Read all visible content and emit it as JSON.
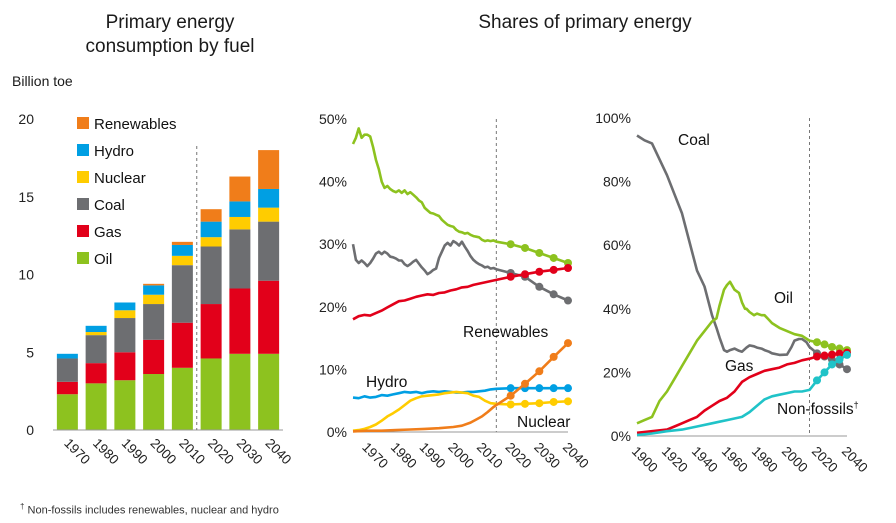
{
  "panels": {
    "left": {
      "title_line1": "Primary energy",
      "title_line2": "consumption by fuel",
      "unit": "Billion toe"
    },
    "middle": {
      "title": "Shares of primary energy"
    }
  },
  "footnote": {
    "mark": "†",
    "text": "Non-fossils includes renewables, nuclear and hydro"
  },
  "colors": {
    "oil": "#8dc21f",
    "gas": "#e2001a",
    "coal": "#6d6e71",
    "nuclear": "#ffcc00",
    "hydro": "#009fe3",
    "renewables": "#f07d1a",
    "nonfossil": "#20c3c8"
  },
  "chart_data": [
    {
      "type": "bar",
      "stacked": true,
      "categories": [
        "1970",
        "1980",
        "1990",
        "2000",
        "2010",
        "2020",
        "2030",
        "2040"
      ],
      "ylim": [
        0,
        20
      ],
      "yticks": [
        "0",
        "5",
        "10",
        "15",
        "20"
      ],
      "ylabel": "Billion toe",
      "projection_from": "2020",
      "legend_position": "top-left",
      "series": [
        {
          "name": "Oil",
          "key": "oil",
          "values": [
            2.3,
            3.0,
            3.2,
            3.6,
            4.0,
            4.6,
            4.9,
            4.9
          ]
        },
        {
          "name": "Gas",
          "key": "gas",
          "values": [
            0.8,
            1.3,
            1.8,
            2.2,
            2.9,
            3.5,
            4.2,
            4.7
          ]
        },
        {
          "name": "Coal",
          "key": "coal",
          "values": [
            1.5,
            1.8,
            2.2,
            2.3,
            3.7,
            3.7,
            3.8,
            3.8
          ]
        },
        {
          "name": "Nuclear",
          "key": "nuclear",
          "values": [
            0.0,
            0.2,
            0.5,
            0.6,
            0.6,
            0.6,
            0.8,
            0.9
          ]
        },
        {
          "name": "Hydro",
          "key": "hydro",
          "values": [
            0.3,
            0.4,
            0.5,
            0.6,
            0.7,
            1.0,
            1.0,
            1.2
          ]
        },
        {
          "name": "Renewables",
          "key": "renewables",
          "values": [
            0.0,
            0.0,
            0.0,
            0.1,
            0.2,
            0.8,
            1.6,
            2.5
          ]
        }
      ]
    },
    {
      "type": "line",
      "xlim": [
        1965,
        2040
      ],
      "xticks": [
        "1970",
        "1980",
        "1990",
        "2000",
        "2010",
        "2020",
        "2030",
        "2040"
      ],
      "ylim": [
        0,
        50
      ],
      "yticks": [
        "0%",
        "10%",
        "20%",
        "30%",
        "40%",
        "50%"
      ],
      "projection_from": 2015,
      "series": [
        {
          "name": "Oil",
          "key": "oil",
          "labeled": false,
          "x": [
            1965,
            1966,
            1967,
            1968,
            1969,
            1970,
            1971,
            1972,
            1973,
            1974,
            1975,
            1976,
            1977,
            1978,
            1979,
            1980,
            1981,
            1982,
            1983,
            1984,
            1985,
            1986,
            1987,
            1988,
            1989,
            1990,
            1991,
            1992,
            1993,
            1994,
            1995,
            1996,
            1997,
            1998,
            1999,
            2000,
            2001,
            2002,
            2003,
            2004,
            2005,
            2006,
            2007,
            2008,
            2009,
            2010,
            2011,
            2012,
            2013,
            2014,
            2015,
            2020,
            2025,
            2030,
            2035,
            2040
          ],
          "y": [
            46,
            47,
            48.5,
            47,
            47.5,
            47.5,
            47.2,
            45.5,
            43.5,
            42,
            40,
            39,
            39.3,
            38.8,
            38.5,
            38.3,
            38.6,
            38.2,
            38.6,
            38,
            38.3,
            37.9,
            37.5,
            37,
            36.7,
            35.8,
            35.4,
            35,
            34.9,
            34.7,
            34.5,
            33.9,
            33.5,
            33.1,
            32.9,
            32.8,
            32.3,
            32,
            31.9,
            31.7,
            31.8,
            31.5,
            31.3,
            31.2,
            31.1,
            30.7,
            30.5,
            30.6,
            30.5,
            30.6,
            30.4,
            30,
            29.4,
            28.6,
            27.8,
            27
          ]
        },
        {
          "name": "Coal",
          "key": "coal",
          "labeled": false,
          "x": [
            1965,
            1966,
            1967,
            1968,
            1969,
            1970,
            1971,
            1972,
            1973,
            1974,
            1975,
            1976,
            1977,
            1978,
            1979,
            1980,
            1981,
            1982,
            1983,
            1984,
            1985,
            1986,
            1987,
            1988,
            1989,
            1990,
            1991,
            1992,
            1993,
            1994,
            1995,
            1996,
            1997,
            1998,
            1999,
            2000,
            2001,
            2002,
            2003,
            2004,
            2005,
            2006,
            2007,
            2008,
            2009,
            2010,
            2011,
            2012,
            2013,
            2014,
            2015,
            2020,
            2025,
            2030,
            2035,
            2040
          ],
          "y": [
            30,
            27.5,
            27,
            27.4,
            27,
            26.5,
            27,
            27.7,
            28.5,
            28.8,
            28.4,
            28.8,
            28.5,
            28,
            27.9,
            27.7,
            27.4,
            27.4,
            26.8,
            26.5,
            26.8,
            27.2,
            27.5,
            26.9,
            26.3,
            25.8,
            25.2,
            25.5,
            25.9,
            26.1,
            27.8,
            28.8,
            29.8,
            30.2,
            29.8,
            30.5,
            30.2,
            29.8,
            30.4,
            29.6,
            28.9,
            28.1,
            27.5,
            27.1,
            26.8,
            26.6,
            26.3,
            26.4,
            26.1,
            26.2,
            26,
            25.4,
            24.8,
            23.2,
            22,
            21
          ]
        },
        {
          "name": "Gas",
          "key": "gas",
          "labeled": false,
          "x": [
            1965,
            1967,
            1969,
            1971,
            1973,
            1975,
            1977,
            1979,
            1981,
            1983,
            1985,
            1987,
            1989,
            1991,
            1993,
            1995,
            1997,
            1999,
            2001,
            2003,
            2005,
            2007,
            2009,
            2011,
            2013,
            2015,
            2020,
            2025,
            2030,
            2035,
            2040
          ],
          "y": [
            18,
            18.5,
            18.7,
            18.6,
            19,
            19.4,
            19.9,
            20.4,
            20.9,
            21,
            21.3,
            21.6,
            21.8,
            22,
            21.9,
            22.2,
            22.3,
            22.6,
            22.8,
            23.1,
            23.2,
            23.5,
            23.7,
            23.9,
            24.1,
            24.3,
            24.8,
            25.2,
            25.6,
            25.9,
            26.2
          ]
        },
        {
          "name": "Hydro",
          "key": "hydro",
          "labeled": true,
          "label": "Hydro",
          "x": [
            1965,
            1967,
            1969,
            1971,
            1973,
            1975,
            1977,
            1979,
            1981,
            1983,
            1985,
            1987,
            1989,
            1991,
            1993,
            1995,
            1997,
            1999,
            2001,
            2003,
            2005,
            2007,
            2009,
            2011,
            2013,
            2015,
            2020,
            2025,
            2030,
            2035,
            2040
          ],
          "y": [
            5.5,
            5.4,
            5.7,
            5.5,
            5.6,
            5.9,
            5.8,
            6,
            6.2,
            6.4,
            6.3,
            6.4,
            6.2,
            6.4,
            6.5,
            6.4,
            6.5,
            6.4,
            6.3,
            6.3,
            6.4,
            6.4,
            6.5,
            6.6,
            6.8,
            6.9,
            7,
            7,
            7,
            7,
            7
          ]
        },
        {
          "name": "Nuclear",
          "key": "nuclear",
          "labeled": true,
          "label": "Nuclear",
          "x": [
            1965,
            1967,
            1969,
            1971,
            1973,
            1975,
            1977,
            1979,
            1981,
            1983,
            1985,
            1987,
            1989,
            1991,
            1993,
            1995,
            1997,
            1999,
            2001,
            2003,
            2005,
            2007,
            2009,
            2011,
            2013,
            2015,
            2020,
            2025,
            2030,
            2035,
            2040
          ],
          "y": [
            0.2,
            0.3,
            0.5,
            0.8,
            1.2,
            1.8,
            2.5,
            3,
            3.6,
            4.3,
            5,
            5.4,
            5.7,
            5.8,
            5.9,
            6,
            6.2,
            6.3,
            6.4,
            6.3,
            6.2,
            5.8,
            5.6,
            5,
            4.6,
            4.5,
            4.4,
            4.5,
            4.6,
            4.8,
            4.9
          ]
        },
        {
          "name": "Renewables",
          "key": "renewables",
          "labeled": true,
          "label": "Renewables",
          "x": [
            1965,
            1970,
            1975,
            1980,
            1985,
            1990,
            1995,
            2000,
            2003,
            2006,
            2008,
            2010,
            2012,
            2014,
            2015,
            2020,
            2025,
            2030,
            2035,
            2040
          ],
          "y": [
            0.1,
            0.2,
            0.2,
            0.3,
            0.4,
            0.5,
            0.6,
            0.8,
            1,
            1.5,
            2,
            2.5,
            3.2,
            4,
            4.3,
            5.8,
            7.7,
            9.7,
            12,
            14.2
          ]
        }
      ]
    },
    {
      "type": "line",
      "xlim": [
        1900,
        2040
      ],
      "xticks": [
        "1900",
        "1920",
        "1940",
        "1960",
        "1980",
        "2000",
        "2020",
        "2040"
      ],
      "ylim": [
        0,
        100
      ],
      "yticks": [
        "0%",
        "20%",
        "40%",
        "60%",
        "80%",
        "100%"
      ],
      "projection_from": 2015,
      "series": [
        {
          "name": "Coal",
          "key": "coal",
          "labeled": true,
          "label": "Coal",
          "x": [
            1900,
            1905,
            1910,
            1915,
            1920,
            1925,
            1930,
            1935,
            1940,
            1945,
            1950,
            1953,
            1955,
            1958,
            1960,
            1962,
            1965,
            1968,
            1970,
            1973,
            1975,
            1978,
            1980,
            1983,
            1985,
            1988,
            1990,
            1995,
            2000,
            2003,
            2005,
            2008,
            2010,
            2013,
            2015,
            2020,
            2025,
            2030,
            2035,
            2040
          ],
          "y": [
            94.5,
            93,
            92,
            87,
            82,
            76,
            70,
            61,
            52,
            47,
            38,
            34,
            31,
            27,
            26.5,
            27,
            27.5,
            26.8,
            26.5,
            27.8,
            28.5,
            28.2,
            27.8,
            27.5,
            27,
            26.5,
            26,
            25.5,
            25.6,
            28,
            30,
            30.5,
            30.5,
            29.5,
            28,
            26,
            25,
            24,
            22.5,
            21
          ]
        },
        {
          "name": "Oil",
          "key": "oil",
          "labeled": true,
          "label": "Oil",
          "x": [
            1900,
            1905,
            1910,
            1915,
            1920,
            1925,
            1930,
            1935,
            1940,
            1945,
            1950,
            1953,
            1955,
            1958,
            1960,
            1962,
            1965,
            1968,
            1970,
            1972,
            1973,
            1975,
            1978,
            1980,
            1983,
            1985,
            1988,
            1990,
            1995,
            2000,
            2005,
            2010,
            2015,
            2020,
            2025,
            2030,
            2035,
            2040
          ],
          "y": [
            4,
            5,
            6,
            11,
            14,
            18,
            22,
            26,
            30,
            33,
            36,
            37,
            41,
            46,
            47.5,
            48.5,
            46,
            45,
            42,
            40,
            40,
            39,
            38,
            38.5,
            38,
            38,
            36.5,
            35.5,
            34,
            33,
            32,
            31.5,
            30,
            29.5,
            28.8,
            28,
            27.5,
            27
          ]
        },
        {
          "name": "Gas",
          "key": "gas",
          "labeled": true,
          "label": "Gas",
          "x": [
            1900,
            1910,
            1920,
            1925,
            1930,
            1935,
            1940,
            1945,
            1950,
            1955,
            1960,
            1965,
            1970,
            1975,
            1980,
            1985,
            1990,
            1995,
            2000,
            2005,
            2010,
            2015,
            2020,
            2025,
            2030,
            2035,
            2040
          ],
          "y": [
            1,
            1.5,
            2,
            3,
            4,
            5,
            6,
            8,
            9.5,
            11,
            12,
            14,
            17,
            18.5,
            19.5,
            20.5,
            21,
            21.5,
            22.5,
            23,
            23.8,
            24.3,
            25,
            25.3,
            25.6,
            25.9,
            26.2
          ]
        },
        {
          "name": "Non-fossils",
          "key": "nonfossil",
          "labeled": true,
          "label": "Non-fossils",
          "x": [
            1900,
            1910,
            1920,
            1930,
            1940,
            1950,
            1955,
            1960,
            1965,
            1970,
            1975,
            1980,
            1985,
            1990,
            1995,
            2000,
            2005,
            2010,
            2015,
            2020,
            2025,
            2030,
            2035,
            2040
          ],
          "y": [
            0.3,
            0.8,
            1.5,
            2,
            3,
            4,
            4.5,
            5,
            5.5,
            6,
            7.5,
            9.5,
            11.5,
            12.5,
            13,
            13.5,
            14,
            14,
            14.5,
            17.5,
            20,
            22.5,
            24,
            25.5
          ]
        }
      ]
    }
  ]
}
